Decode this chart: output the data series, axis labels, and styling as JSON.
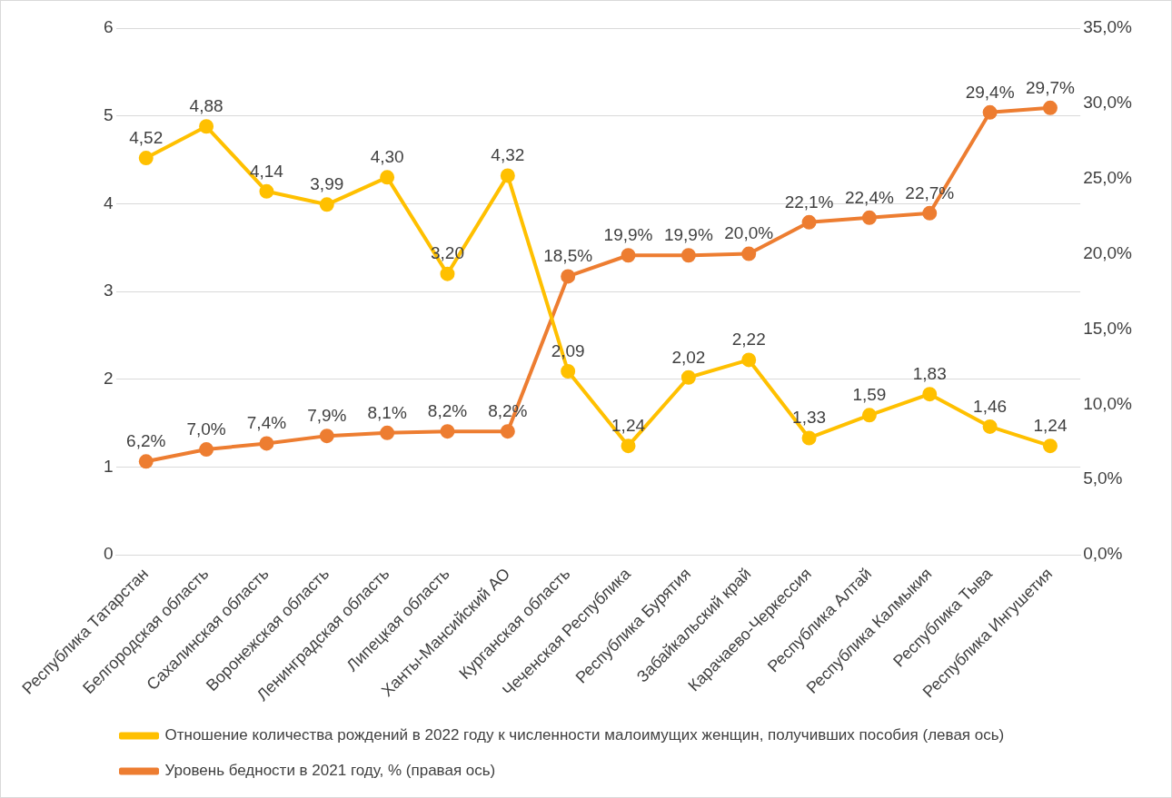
{
  "chart_data": {
    "type": "line",
    "categories": [
      "Республика Татарстан",
      "Белгородская область",
      "Сахалинская область",
      "Воронежская область",
      "Ленинградская область",
      "Липецкая область",
      "Ханты-Мансийский АО",
      "Курганская область",
      "Чеченская Республика",
      "Республика Бурятия",
      "Забайкальский край",
      "Карачаево-Черкессия",
      "Республика Алтай",
      "Республика Калмыкия",
      "Республика Тыва",
      "Республика Ингушетия"
    ],
    "series": [
      {
        "name": "Отношение количества рождений в 2022 году к численности малоимущих женщин, получивших пособия (левая ось)",
        "color": "#ffc000",
        "values": [
          4.52,
          4.88,
          4.14,
          3.99,
          4.3,
          3.2,
          4.32,
          2.09,
          1.24,
          2.02,
          2.22,
          1.33,
          1.59,
          1.83,
          1.46,
          1.24
        ],
        "value_labels": [
          "4,52",
          "4,88",
          "4,14",
          "3,99",
          "4,30",
          "3,20",
          "4,32",
          "2,09",
          "1,24",
          "2,02",
          "2,22",
          "1,33",
          "1,59",
          "1,83",
          "1,46",
          "1,24"
        ]
      },
      {
        "name": "Уровень бедности в 2021 году, % (правая ось)",
        "color": "#ed7d31",
        "axis": "y2",
        "values": [
          6.2,
          7.0,
          7.4,
          7.9,
          8.1,
          8.2,
          8.2,
          18.5,
          19.9,
          19.9,
          20.0,
          22.1,
          22.4,
          22.7,
          29.4,
          29.7
        ],
        "value_labels": [
          "6,2%",
          "7,0%",
          "7,4%",
          "7,9%",
          "8,1%",
          "8,2%",
          "8,2%",
          "18,5%",
          "19,9%",
          "19,9%",
          "20,0%",
          "22,1%",
          "22,4%",
          "22,7%",
          "29,4%",
          "29,7%"
        ]
      }
    ],
    "ylim": [
      0,
      6
    ],
    "yticks": [
      0,
      1,
      2,
      3,
      4,
      5,
      6
    ],
    "y2lim": [
      0,
      35
    ],
    "y2ticks": [
      {
        "value": 0,
        "label": "0,0%"
      },
      {
        "value": 5,
        "label": "5,0%"
      },
      {
        "value": 10,
        "label": "10,0%"
      },
      {
        "value": 15,
        "label": "15,0%"
      },
      {
        "value": 20,
        "label": "20,0%"
      },
      {
        "value": 25,
        "label": "25,0%"
      },
      {
        "value": 30,
        "label": "30,0%"
      },
      {
        "value": 35,
        "label": "35,0%"
      }
    ],
    "grid": "y",
    "legend": "bottom",
    "marker": "circle",
    "line_style": "solid"
  }
}
